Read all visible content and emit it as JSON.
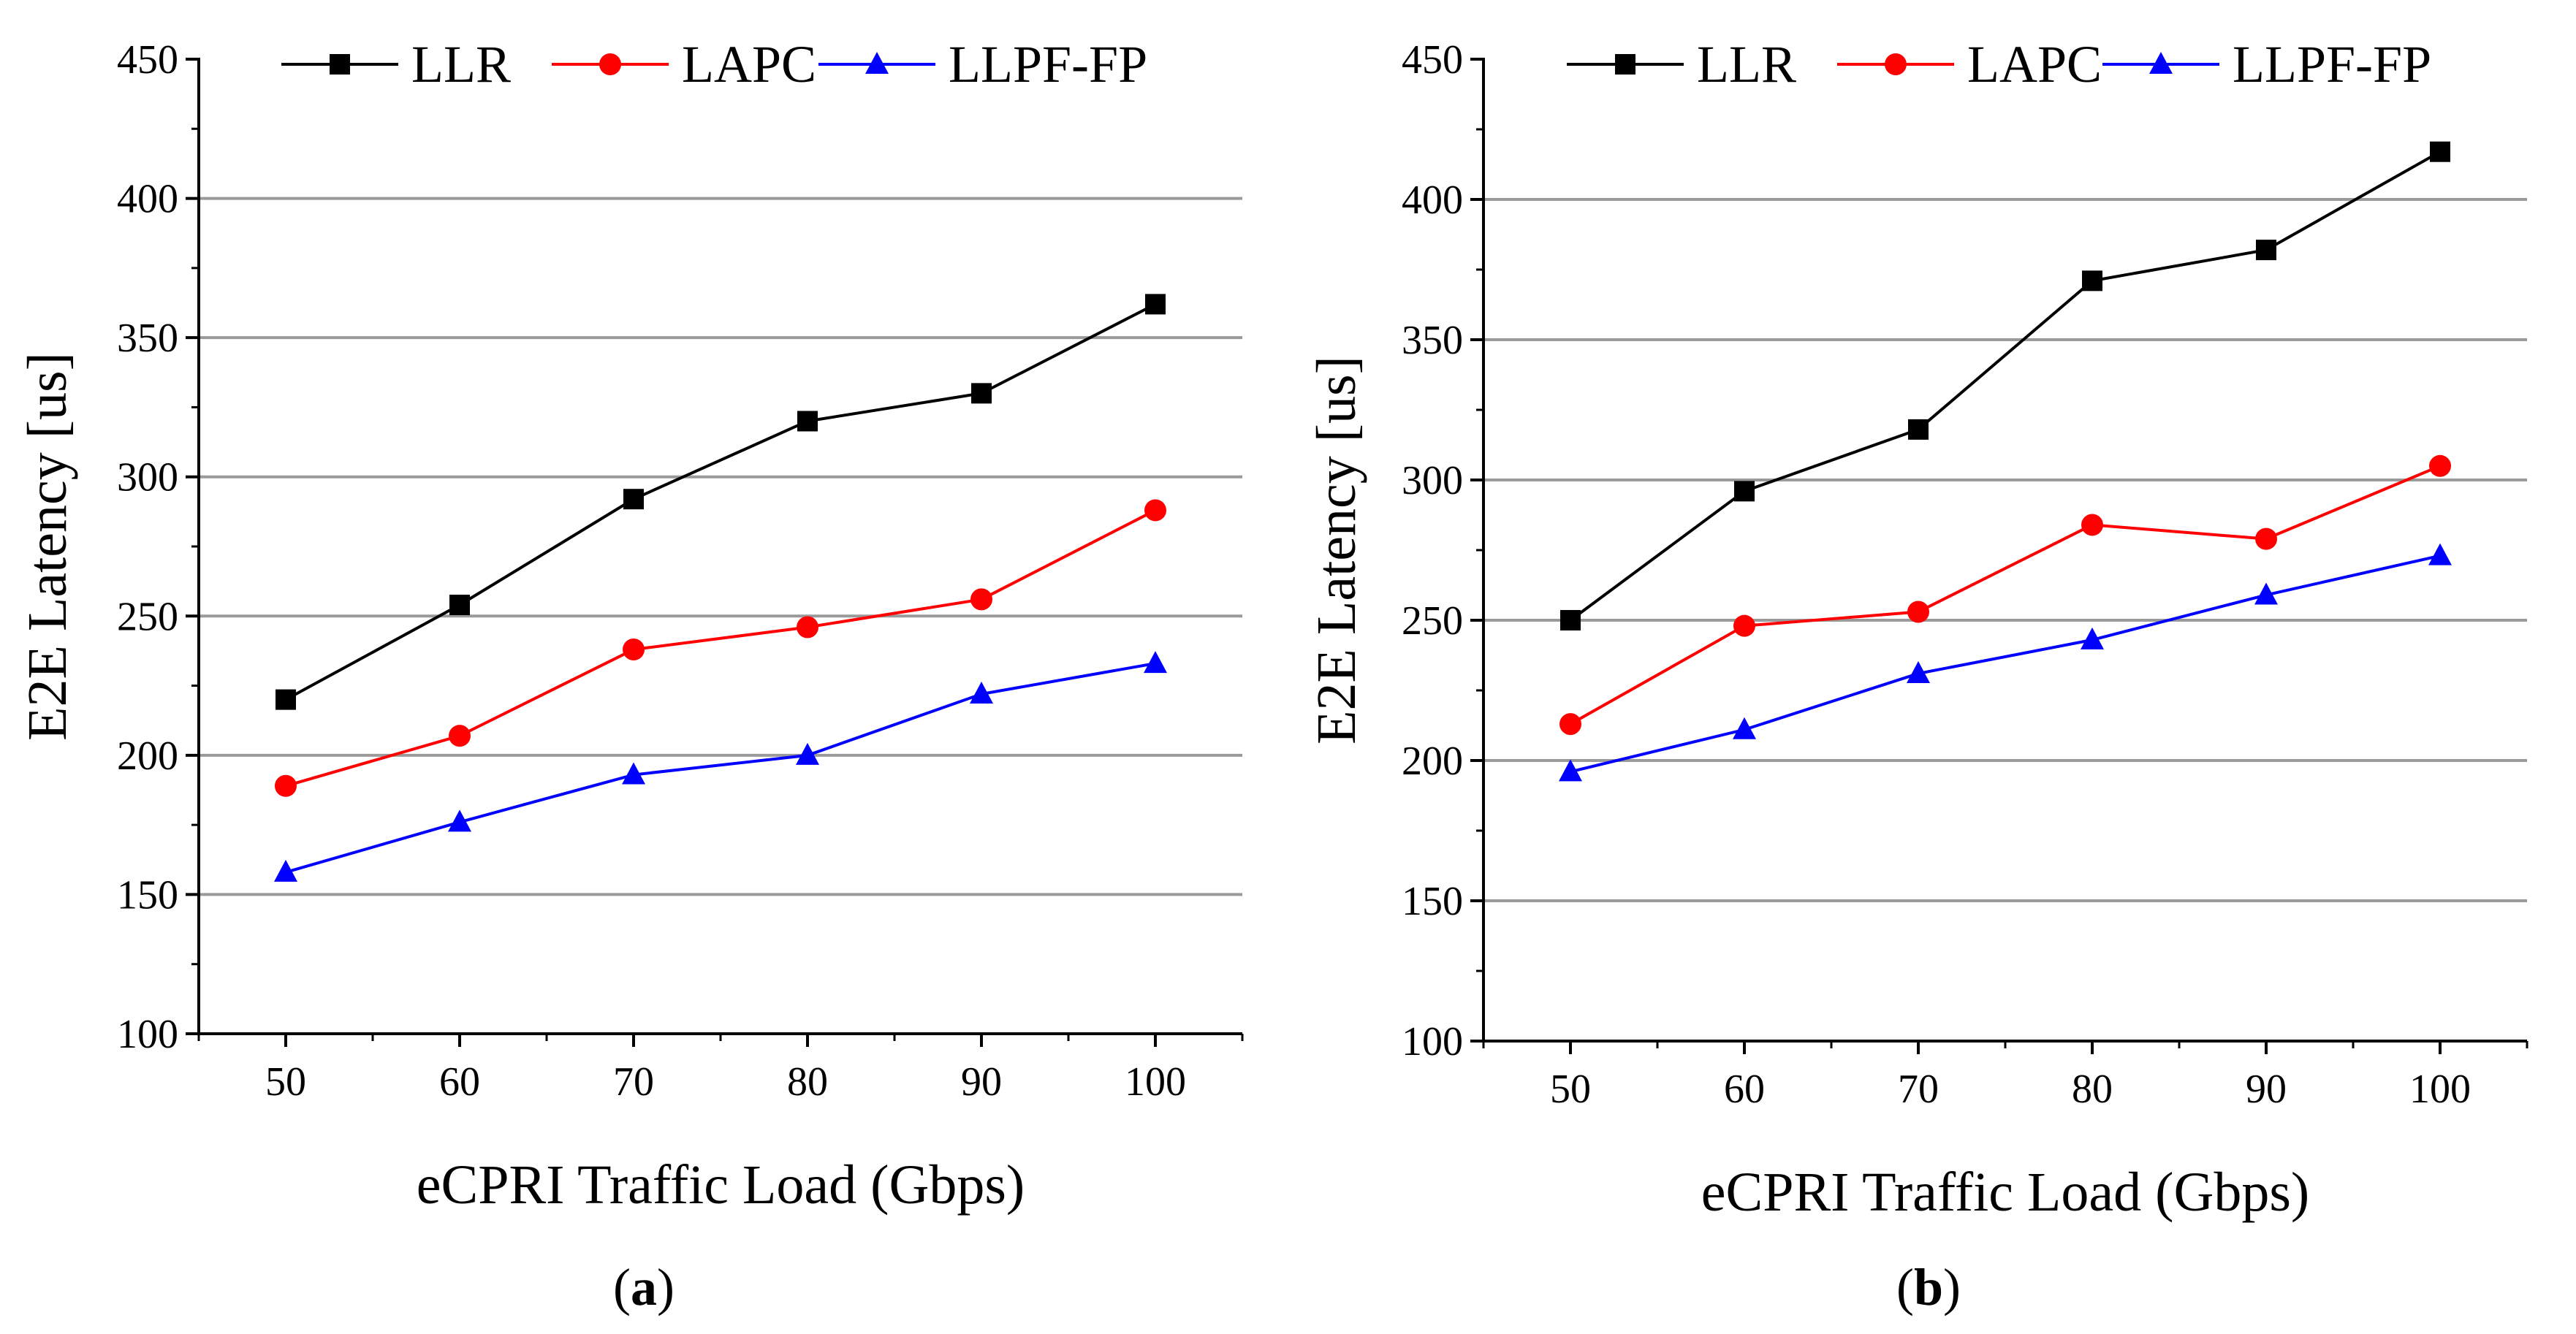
{
  "chart_data": [
    {
      "id": "a",
      "type": "line",
      "panel_label": "a",
      "xlabel": "eCPRI Traffic Load (Gbps)",
      "ylabel": "E2E Latency [us]",
      "categories": [
        50,
        60,
        70,
        80,
        90,
        100
      ],
      "xlim": [
        45,
        105
      ],
      "ylim": [
        100,
        450
      ],
      "yticks": [
        100,
        150,
        200,
        250,
        300,
        350,
        400,
        450
      ],
      "grid": "horizontal",
      "legend": "top",
      "series": [
        {
          "name": "LLR",
          "color": "#000000",
          "marker": "square",
          "values": [
            220,
            254,
            292,
            320,
            330,
            362
          ]
        },
        {
          "name": "LAPC",
          "color": "#ff0000",
          "marker": "circle",
          "values": [
            189,
            207,
            238,
            246,
            256,
            288
          ]
        },
        {
          "name": "LLPF-FP",
          "color": "#0000ff",
          "marker": "triangle",
          "values": [
            158,
            176,
            193,
            200,
            222,
            233
          ]
        }
      ]
    },
    {
      "id": "b",
      "type": "line",
      "panel_label": "b",
      "xlabel": "eCPRI Traffic Load (Gbps)",
      "ylabel": "E2E Latency [us]",
      "categories": [
        50,
        60,
        70,
        80,
        90,
        100
      ],
      "xlim": [
        45,
        105
      ],
      "ylim": [
        100,
        450
      ],
      "yticks": [
        100,
        150,
        200,
        250,
        300,
        350,
        400,
        450
      ],
      "grid": "horizontal",
      "legend": "top",
      "series": [
        {
          "name": "LLR",
          "color": "#000000",
          "marker": "square",
          "values": [
            250,
            296,
            318,
            371,
            382,
            417
          ]
        },
        {
          "name": "LAPC",
          "color": "#ff0000",
          "marker": "circle",
          "values": [
            213,
            248,
            253,
            284,
            279,
            305
          ]
        },
        {
          "name": "LLPF-FP",
          "color": "#0000ff",
          "marker": "triangle",
          "values": [
            196,
            211,
            231,
            243,
            259,
            273
          ]
        }
      ]
    }
  ]
}
